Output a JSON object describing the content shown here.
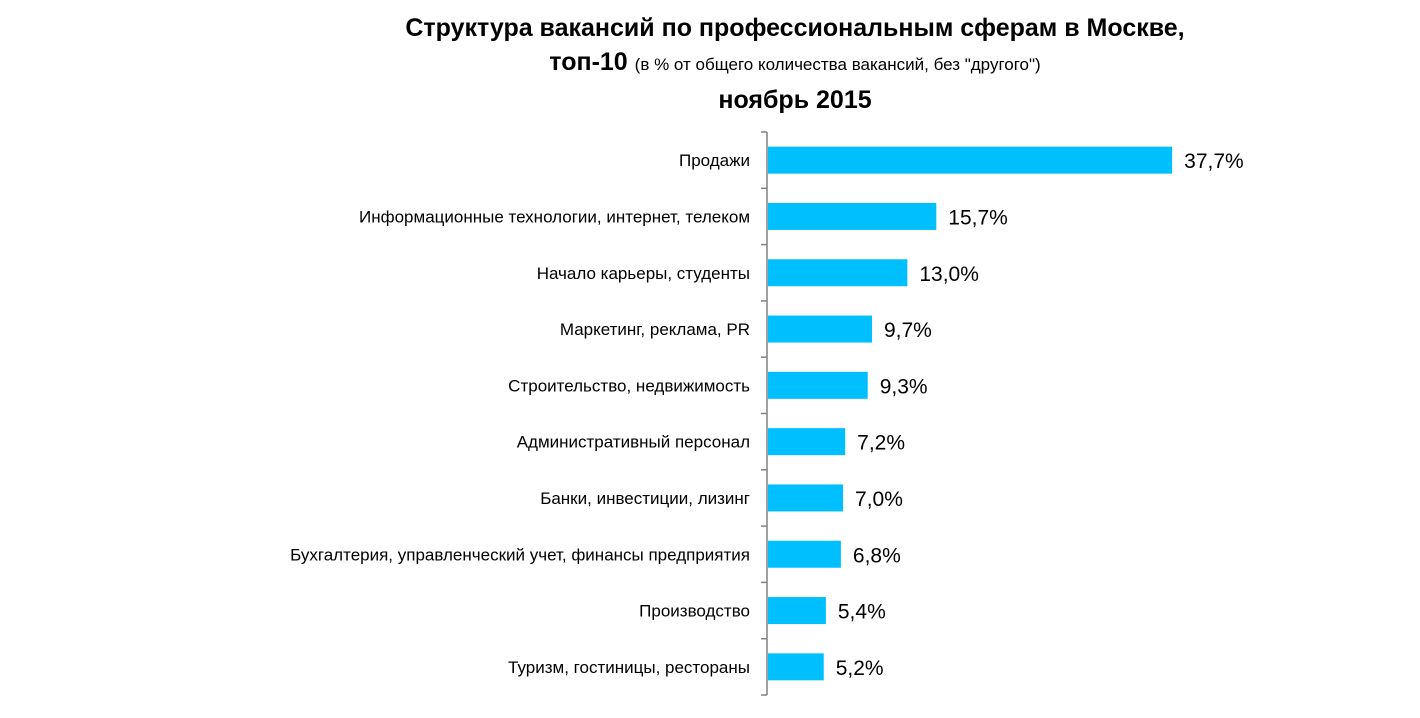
{
  "chart_data": {
    "type": "bar",
    "orientation": "horizontal",
    "title_line1": "Структура вакансий по профессиональным сферам в Москве,",
    "title_line2": "топ-10",
    "title_note": "(в % от общего количества вакансий, без \"другого\")",
    "subtitle": "ноябрь 2015",
    "categories": [
      "Продажи",
      "Информационные технологии, интернет, телеком",
      "Начало карьеры, студенты",
      "Маркетинг, реклама, PR",
      "Строительство, недвижимость",
      "Административный персонал",
      "Банки, инвестиции, лизинг",
      "Бухгалтерия, управленческий учет, финансы предприятия",
      "Производство",
      "Туризм, гостиницы, рестораны"
    ],
    "values": [
      37.7,
      15.7,
      13.0,
      9.7,
      9.3,
      7.2,
      7.0,
      6.8,
      5.4,
      5.2
    ],
    "data_labels": [
      "37,7%",
      "15,7%",
      "13,0%",
      "9,7%",
      "9,3%",
      "7,2%",
      "7,0%",
      "6,8%",
      "5,4%",
      "5,2%"
    ],
    "xlim": [
      0,
      40
    ],
    "grid": false,
    "legend": "none",
    "bar_color": "#00BFFF",
    "axis_color": "#808080"
  }
}
